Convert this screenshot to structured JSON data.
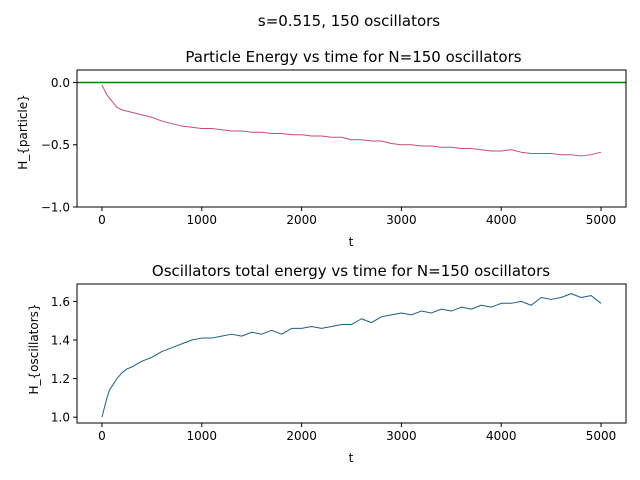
{
  "figure": {
    "suptitle": "s=0.515, 150 oscillators"
  },
  "chart_data": [
    {
      "type": "line",
      "title": "Particle Energy vs time for N=150 oscillators",
      "xlabel": "t",
      "ylabel": "H_{particle}",
      "xlim": [
        -250,
        5250
      ],
      "ylim": [
        -1.0,
        0.1
      ],
      "xticks": [
        0,
        1000,
        2000,
        3000,
        4000,
        5000
      ],
      "yticks": [
        -1.0,
        -0.5,
        0.0
      ],
      "xtick_labels": [
        "0",
        "1000",
        "2000",
        "3000",
        "4000",
        "5000"
      ],
      "ytick_labels": [
        "−1.0",
        "−0.5",
        "0.0"
      ],
      "grid": false,
      "hline": {
        "y": 0.0,
        "color": "#008000"
      },
      "series": [
        {
          "color": "#c44e6e",
          "x": [
            0,
            25,
            50,
            100,
            150,
            200,
            300,
            400,
            500,
            600,
            700,
            800,
            900,
            1000,
            1100,
            1200,
            1300,
            1400,
            1500,
            1600,
            1700,
            1800,
            1900,
            2000,
            2100,
            2200,
            2300,
            2400,
            2500,
            2600,
            2700,
            2800,
            2900,
            3000,
            3100,
            3200,
            3300,
            3400,
            3500,
            3600,
            3700,
            3800,
            3900,
            4000,
            4100,
            4200,
            4300,
            4400,
            4500,
            4600,
            4700,
            4800,
            4900,
            5000
          ],
          "y": [
            -0.02,
            -0.06,
            -0.1,
            -0.15,
            -0.2,
            -0.22,
            -0.24,
            -0.26,
            -0.28,
            -0.31,
            -0.33,
            -0.35,
            -0.36,
            -0.37,
            -0.37,
            -0.38,
            -0.39,
            -0.39,
            -0.4,
            -0.4,
            -0.41,
            -0.41,
            -0.42,
            -0.42,
            -0.43,
            -0.43,
            -0.44,
            -0.44,
            -0.46,
            -0.46,
            -0.47,
            -0.47,
            -0.49,
            -0.5,
            -0.5,
            -0.51,
            -0.51,
            -0.52,
            -0.52,
            -0.53,
            -0.53,
            -0.54,
            -0.55,
            -0.55,
            -0.54,
            -0.56,
            -0.57,
            -0.57,
            -0.57,
            -0.58,
            -0.58,
            -0.59,
            -0.58,
            -0.56
          ]
        }
      ]
    },
    {
      "type": "line",
      "title": "Oscillators total energy vs time for N=150 oscillators",
      "xlabel": "t",
      "ylabel": "H_{oscillators}",
      "xlim": [
        -250,
        5250
      ],
      "ylim": [
        0.97,
        1.69
      ],
      "xticks": [
        0,
        1000,
        2000,
        3000,
        4000,
        5000
      ],
      "yticks": [
        1.0,
        1.2,
        1.4,
        1.6
      ],
      "xtick_labels": [
        "0",
        "1000",
        "2000",
        "3000",
        "4000",
        "5000"
      ],
      "ytick_labels": [
        "1.0",
        "1.2",
        "1.4",
        "1.6"
      ],
      "grid": false,
      "series": [
        {
          "color": "#1f5f7f",
          "x": [
            0,
            25,
            50,
            75,
            100,
            150,
            200,
            250,
            300,
            400,
            500,
            600,
            700,
            800,
            900,
            1000,
            1100,
            1200,
            1300,
            1400,
            1500,
            1600,
            1700,
            1800,
            1900,
            2000,
            2100,
            2200,
            2300,
            2400,
            2500,
            2600,
            2700,
            2800,
            2900,
            3000,
            3100,
            3200,
            3300,
            3400,
            3500,
            3600,
            3700,
            3800,
            3900,
            4000,
            4100,
            4200,
            4300,
            4400,
            4500,
            4600,
            4700,
            4800,
            4900,
            5000
          ],
          "y": [
            1.0,
            1.05,
            1.1,
            1.14,
            1.16,
            1.2,
            1.23,
            1.25,
            1.26,
            1.29,
            1.31,
            1.34,
            1.36,
            1.38,
            1.4,
            1.41,
            1.41,
            1.42,
            1.43,
            1.42,
            1.44,
            1.43,
            1.45,
            1.43,
            1.46,
            1.46,
            1.47,
            1.46,
            1.47,
            1.48,
            1.48,
            1.51,
            1.49,
            1.52,
            1.53,
            1.54,
            1.53,
            1.55,
            1.54,
            1.56,
            1.55,
            1.57,
            1.56,
            1.58,
            1.57,
            1.59,
            1.59,
            1.6,
            1.58,
            1.62,
            1.61,
            1.62,
            1.64,
            1.62,
            1.63,
            1.59
          ]
        }
      ]
    }
  ]
}
